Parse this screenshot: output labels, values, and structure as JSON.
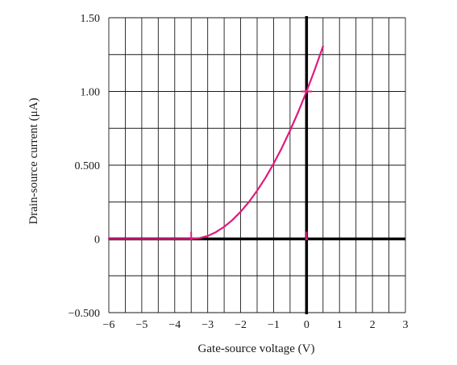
{
  "chart_data": {
    "type": "line",
    "title": "",
    "xlabel": "Gate-source voltage (V)",
    "ylabel": "Drain-source current (μA)",
    "xlim": [
      -6,
      3
    ],
    "ylim": [
      -0.5,
      1.5
    ],
    "x_ticks": [
      -6,
      -5,
      -4,
      -3,
      -2,
      -1,
      0,
      1,
      2,
      3
    ],
    "x_tick_labels": [
      "−6",
      "−5",
      "−4",
      "−3",
      "−2",
      "−1",
      "0",
      "1",
      "2",
      "3"
    ],
    "y_ticks": [
      -0.5,
      0,
      0.5,
      1.0,
      1.5
    ],
    "y_tick_labels": [
      "−0.500",
      "0",
      "0.500",
      "1.00",
      "1.50"
    ],
    "grid": true,
    "x_grid_step": 0.5,
    "y_grid_step": 0.25,
    "legend": "none",
    "series": [
      {
        "color": "#e0197d",
        "x": [
          -6,
          -5,
          -4,
          -3.5,
          -3.25,
          -3,
          -2.75,
          -2.5,
          -2.25,
          -2,
          -1.75,
          -1.5,
          -1.25,
          -1,
          -0.75,
          -0.5,
          -0.25,
          0,
          0.25,
          0.5
        ],
        "y": [
          0,
          0,
          0,
          0,
          0.005,
          0.02,
          0.046,
          0.082,
          0.128,
          0.184,
          0.25,
          0.327,
          0.413,
          0.51,
          0.617,
          0.735,
          0.862,
          1.0,
          1.148,
          1.306
        ]
      }
    ],
    "markers": [
      {
        "x": -3.5,
        "y": 0,
        "color": "#e0197d"
      },
      {
        "x": 0,
        "y": 1.0,
        "color": "#e0197d"
      },
      {
        "x": 0,
        "y": 0,
        "color": "#e0197d"
      }
    ],
    "colors": {
      "axis": "#000000",
      "grid": "#1a1a1a",
      "curve": "#e0197d"
    }
  }
}
